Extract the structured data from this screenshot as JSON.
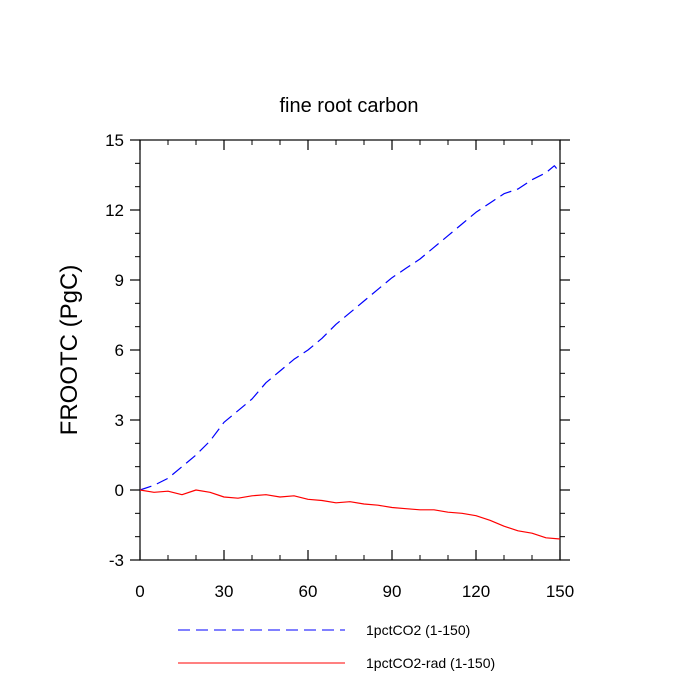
{
  "chart_data": {
    "type": "line",
    "title": "fine root carbon",
    "xlabel": "",
    "ylabel": "FROOTC  (PgC)",
    "xlim": [
      0,
      150
    ],
    "ylim": [
      -3,
      15
    ],
    "xticks": [
      0,
      30,
      60,
      90,
      120,
      150
    ],
    "xtick_labels": [
      "0",
      "30",
      "60",
      "90",
      "120",
      "150"
    ],
    "yticks": [
      -3,
      0,
      3,
      6,
      9,
      12,
      15
    ],
    "ytick_labels": [
      "-3",
      "0",
      "3",
      "6",
      "9",
      "12",
      "15"
    ],
    "grid": false,
    "legend_position": "bottom",
    "series": [
      {
        "name": "1pctCO2 (1-150)",
        "color": "#0000ff",
        "dash": "dashed",
        "x": [
          0,
          5,
          10,
          15,
          20,
          25,
          30,
          35,
          40,
          45,
          50,
          55,
          60,
          65,
          70,
          75,
          80,
          85,
          90,
          95,
          100,
          105,
          110,
          115,
          120,
          125,
          130,
          135,
          140,
          145,
          148,
          150
        ],
        "y": [
          0.0,
          0.2,
          0.5,
          1.0,
          1.5,
          2.1,
          2.9,
          3.4,
          3.9,
          4.6,
          5.1,
          5.6,
          6.0,
          6.5,
          7.1,
          7.6,
          8.1,
          8.6,
          9.1,
          9.5,
          9.9,
          10.4,
          10.9,
          11.4,
          11.9,
          12.3,
          12.7,
          12.9,
          13.3,
          13.6,
          13.9,
          13.6
        ]
      },
      {
        "name": "1pctCO2-rad (1-150)",
        "color": "#ff0000",
        "dash": "solid",
        "x": [
          0,
          5,
          10,
          15,
          20,
          25,
          30,
          35,
          40,
          45,
          50,
          55,
          60,
          65,
          70,
          75,
          80,
          85,
          90,
          95,
          100,
          105,
          110,
          115,
          120,
          125,
          130,
          135,
          140,
          145,
          150
        ],
        "y": [
          0.0,
          -0.1,
          -0.05,
          -0.2,
          0.0,
          -0.1,
          -0.3,
          -0.35,
          -0.25,
          -0.2,
          -0.3,
          -0.25,
          -0.4,
          -0.45,
          -0.55,
          -0.5,
          -0.6,
          -0.65,
          -0.75,
          -0.8,
          -0.85,
          -0.85,
          -0.95,
          -1.0,
          -1.1,
          -1.3,
          -1.55,
          -1.75,
          -1.85,
          -2.05,
          -2.1
        ]
      }
    ]
  }
}
